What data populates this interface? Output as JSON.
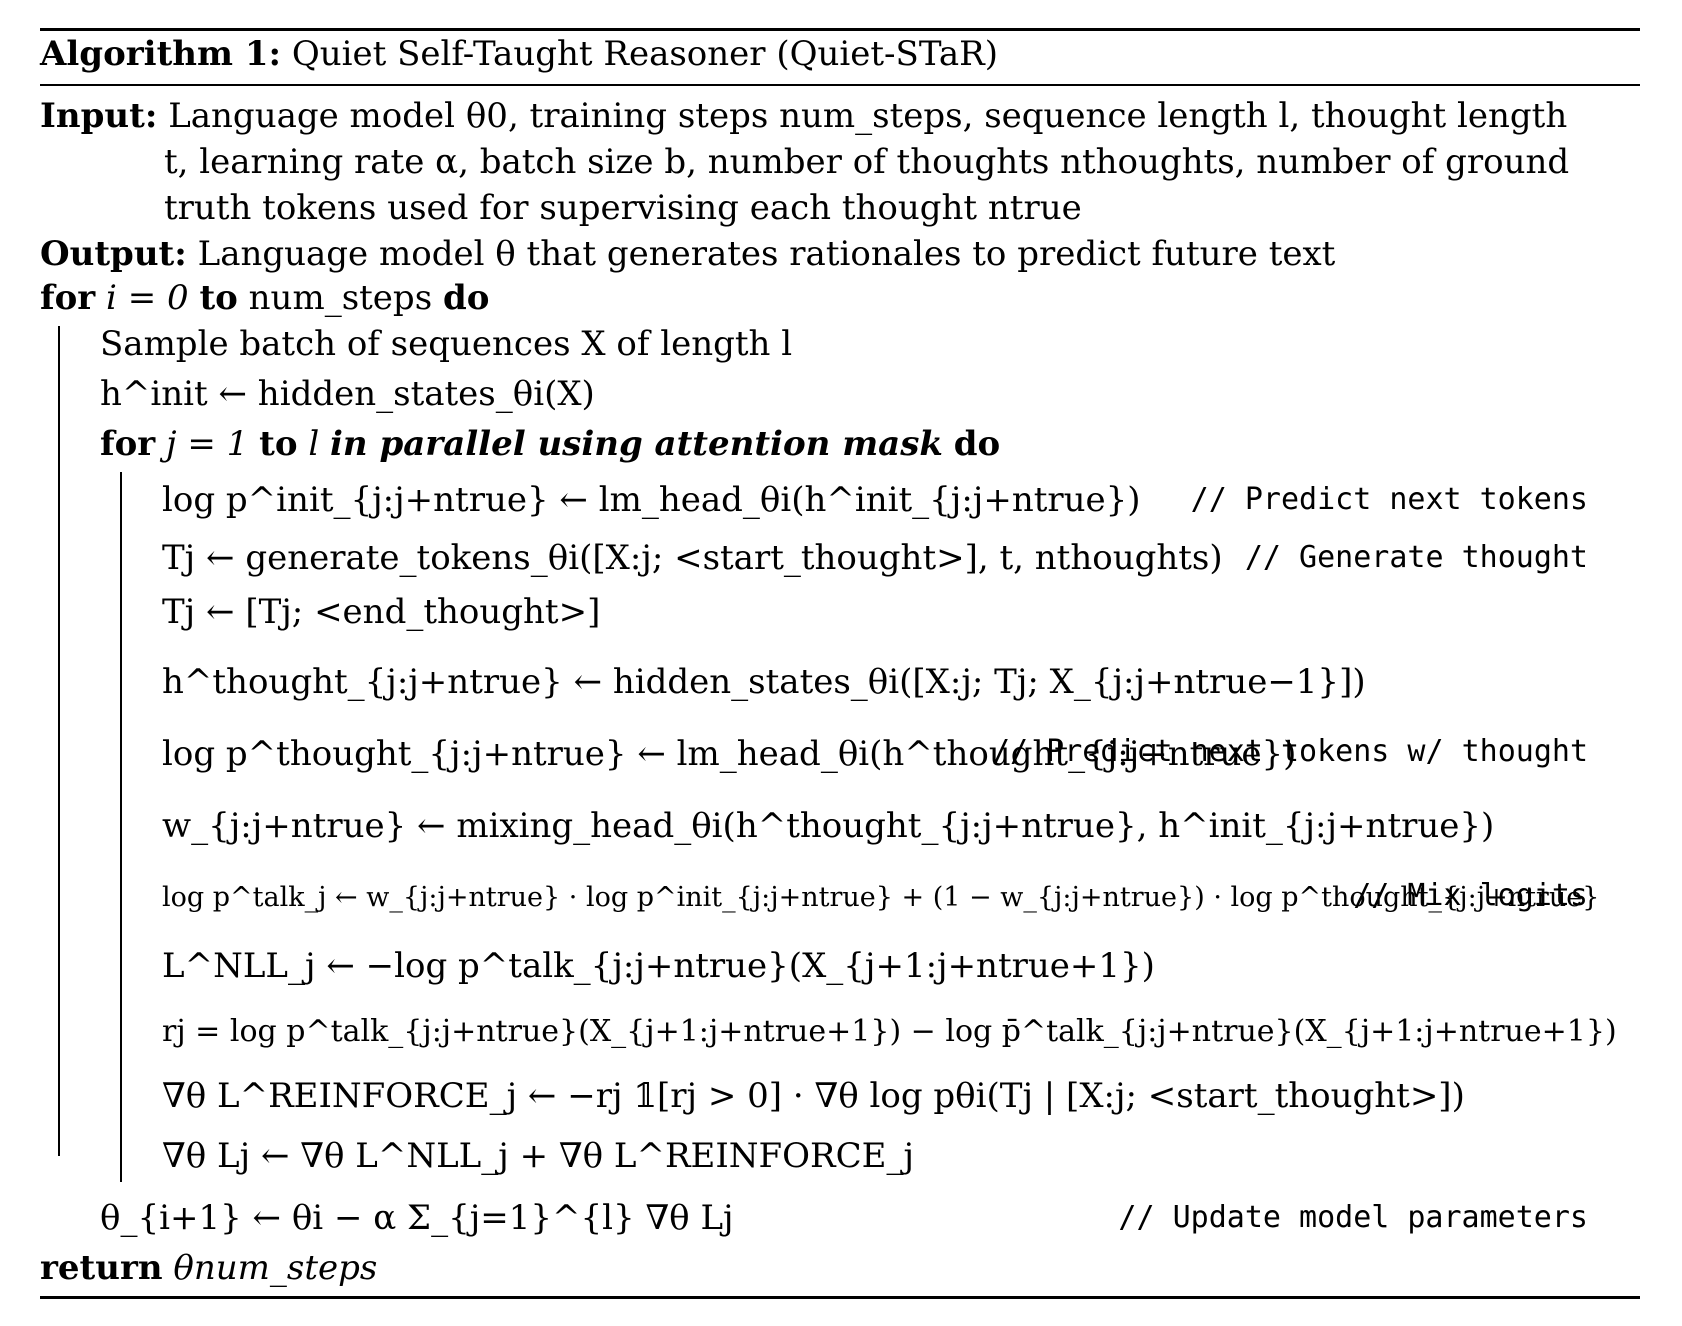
{
  "header": {
    "label": "Algorithm 1:",
    "title": "Quiet Self-Taught Reasoner (Quiet-STaR)"
  },
  "input": {
    "label": "Input:",
    "line1": "Language model θ0, training steps num_steps, sequence length l, thought length",
    "line2": "t, learning rate α, batch size b, number of thoughts nthoughts, number of ground",
    "line3": "truth tokens used for supervising each thought ntrue"
  },
  "output": {
    "label": "Output:",
    "text": "Language model θ that generates rationales to predict future text"
  },
  "loop_outer": {
    "for": "for",
    "cond": "i = 0",
    "to": "to",
    "bound": "num_steps",
    "do": "do"
  },
  "body": {
    "sample": "Sample batch of sequences X of length l",
    "hinit": "h^init ← hidden_states_θi(X)",
    "inner_for": "for",
    "inner_cond": "j = 1",
    "inner_to": "to",
    "inner_bound": "l",
    "inner_parallel": "in parallel using attention mask",
    "inner_do": "do"
  },
  "inner_lines": [
    "log p^init_{j:j+ntrue} ← lm_head_θi(h^init_{j:j+ntrue})",
    "Tj ← generate_tokens_θi([X:j; <start_thought>], t, nthoughts)",
    "Tj ← [Tj; <end_thought>]",
    "h^thought_{j:j+ntrue} ← hidden_states_θi([X:j; Tj; X_{j:j+ntrue−1}])",
    "log p^thought_{j:j+ntrue} ← lm_head_θi(h^thought_{j:j+ntrue})",
    "w_{j:j+ntrue} ← mixing_head_θi(h^thought_{j:j+ntrue}, h^init_{j:j+ntrue})",
    "log p^talk_j ← w_{j:j+ntrue} · log p^init_{j:j+ntrue} + (1 − w_{j:j+ntrue}) · log p^thought_{j:j+ntrue}",
    "L^NLL_j ← −log p^talk_{j:j+ntrue}(X_{j+1:j+ntrue+1})",
    "rj = log p^talk_{j:j+ntrue}(X_{j+1:j+ntrue+1}) − log p̄^talk_{j:j+ntrue}(X_{j+1:j+ntrue+1})",
    "∇θ L^REINFORCE_j ← −rj 𝟙[rj > 0] · ∇θ log pθi(Tj | [X:j; <start_thought>])",
    "∇θ Lj ← ∇θ L^NLL_j + ∇θ L^REINFORCE_j"
  ],
  "update": "θ_{i+1} ← θi − α Σ_{j=1}^{l} ∇θ Lj",
  "return": {
    "label": "return",
    "value": "θnum_steps"
  },
  "comments": {
    "predict": "// Predict next tokens",
    "generate": "// Generate thought",
    "predict_thought": "// Predict next tokens w/ thought",
    "mix": "// Mix logits",
    "update": "// Update model parameters"
  }
}
